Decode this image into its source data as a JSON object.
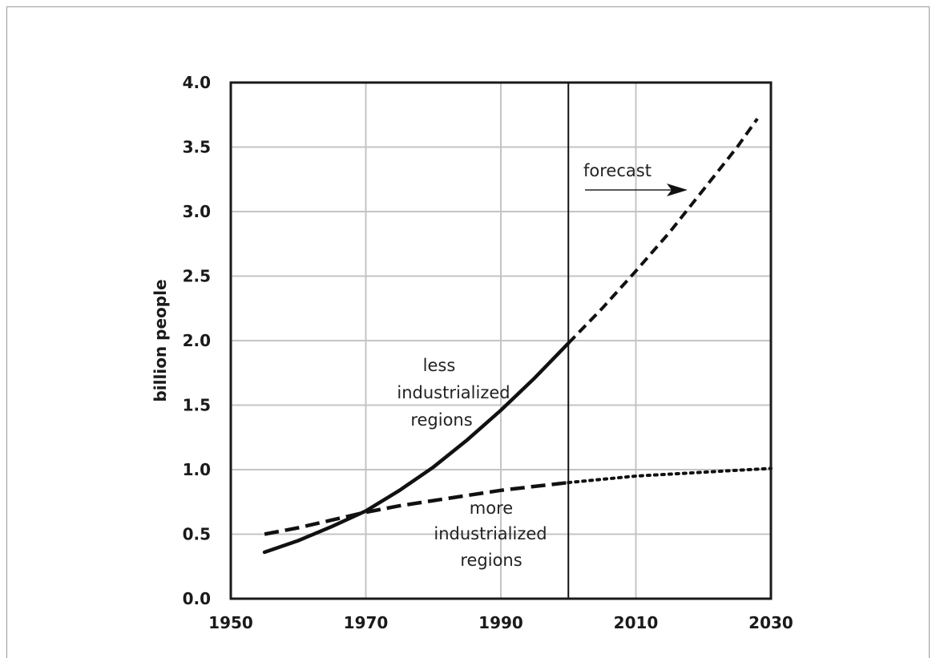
{
  "chart_data": {
    "type": "line",
    "title": "",
    "xlabel": "",
    "ylabel": "billion people",
    "xlim": [
      1950,
      2030
    ],
    "ylim": [
      0.0,
      4.0
    ],
    "x_ticks": [
      "1950",
      "1970",
      "1990",
      "2010",
      "2030"
    ],
    "y_ticks": [
      "0.0",
      "0.5",
      "1.0",
      "1.5",
      "2.0",
      "2.5",
      "3.0",
      "3.5",
      "4.0"
    ],
    "grid": true,
    "forecast_start": 2000,
    "series": [
      {
        "name": "less industrialized regions",
        "observed": {
          "x": [
            1955,
            1960,
            1965,
            1970,
            1975,
            1980,
            1985,
            1990,
            1995,
            2000
          ],
          "y": [
            0.36,
            0.45,
            0.56,
            0.68,
            0.84,
            1.02,
            1.23,
            1.46,
            1.71,
            1.98
          ]
        },
        "forecast": {
          "x": [
            2000,
            2005,
            2010,
            2015,
            2020,
            2025,
            2028
          ],
          "y": [
            1.98,
            2.25,
            2.54,
            2.84,
            3.17,
            3.5,
            3.72
          ]
        }
      },
      {
        "name": "more industrialized regions",
        "observed": {
          "x": [
            1955,
            1960,
            1965,
            1970,
            1975,
            1980,
            1985,
            1990,
            1995,
            2000
          ],
          "y": [
            0.5,
            0.55,
            0.61,
            0.67,
            0.72,
            0.76,
            0.8,
            0.84,
            0.87,
            0.9
          ]
        },
        "forecast": {
          "x": [
            2000,
            2010,
            2020,
            2030
          ],
          "y": [
            0.9,
            0.95,
            0.98,
            1.01
          ]
        }
      }
    ],
    "annotations": {
      "forecast": "forecast",
      "less_label": [
        "less",
        "industrialized",
        "regions"
      ],
      "more_label": [
        "more",
        "industrialized",
        "regions"
      ]
    }
  }
}
